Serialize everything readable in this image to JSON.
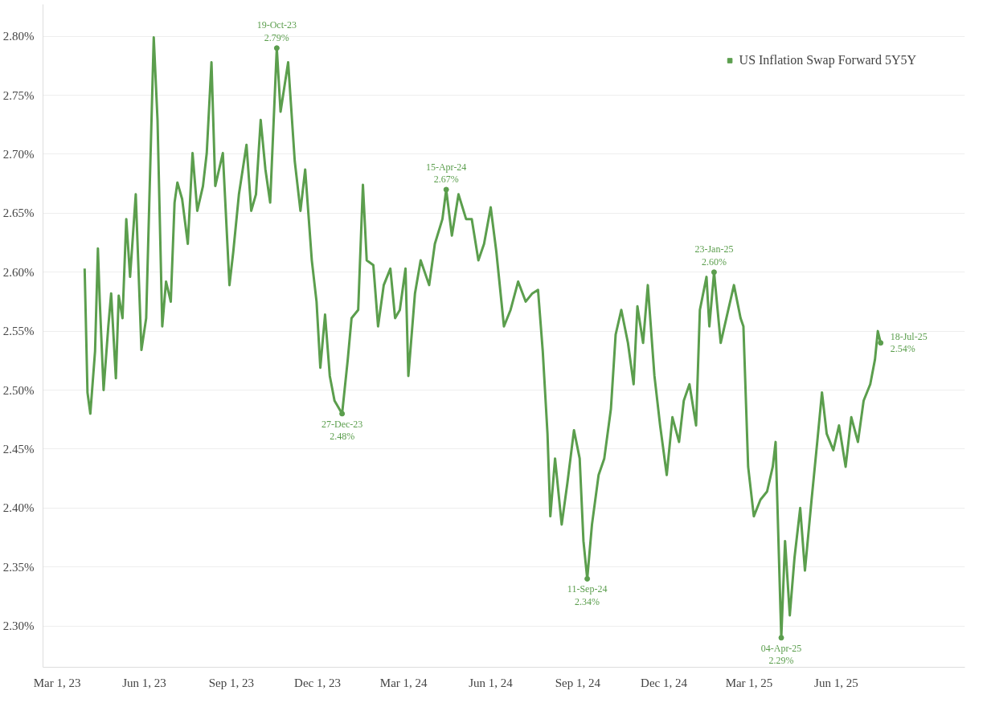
{
  "chart_data": {
    "type": "line",
    "xlim": [
      "2023-02-14",
      "2025-10-15"
    ],
    "ylim": [
      2.265,
      2.827
    ],
    "xticks": [
      {
        "value": "2023-03-01",
        "label": "Mar 1, 23"
      },
      {
        "value": "2023-06-01",
        "label": "Jun 1, 23"
      },
      {
        "value": "2023-09-01",
        "label": "Sep 1, 23"
      },
      {
        "value": "2023-12-01",
        "label": "Dec 1, 23"
      },
      {
        "value": "2024-03-01",
        "label": "Mar 1, 24"
      },
      {
        "value": "2024-06-01",
        "label": "Jun 1, 24"
      },
      {
        "value": "2024-09-01",
        "label": "Sep 1, 24"
      },
      {
        "value": "2024-12-01",
        "label": "Dec 1, 24"
      },
      {
        "value": "2025-03-01",
        "label": "Mar 1, 25"
      },
      {
        "value": "2025-06-01",
        "label": "Jun 1, 25"
      }
    ],
    "yticks": [
      {
        "value": 2.3,
        "label": "2.30%"
      },
      {
        "value": 2.35,
        "label": "2.35%"
      },
      {
        "value": 2.4,
        "label": "2.40%"
      },
      {
        "value": 2.45,
        "label": "2.45%"
      },
      {
        "value": 2.5,
        "label": "2.50%"
      },
      {
        "value": 2.55,
        "label": "2.55%"
      },
      {
        "value": 2.6,
        "label": "2.60%"
      },
      {
        "value": 2.65,
        "label": "2.65%"
      },
      {
        "value": 2.7,
        "label": "2.70%"
      },
      {
        "value": 2.75,
        "label": "2.75%"
      },
      {
        "value": 2.8,
        "label": "2.80%"
      }
    ],
    "grid": "y",
    "legend": "top right",
    "marker": "none",
    "line_style": "solid",
    "series": [
      {
        "name": "US Inflation Swap Forward 5Y5Y",
        "color": "#5b9e4d",
        "x": [
          "2023-03-30",
          "2023-04-02",
          "2023-04-05",
          "2023-04-10",
          "2023-04-13",
          "2023-04-15",
          "2023-04-19",
          "2023-04-24",
          "2023-04-27",
          "2023-05-02",
          "2023-05-05",
          "2023-05-09",
          "2023-05-13",
          "2023-05-17",
          "2023-05-23",
          "2023-05-29",
          "2023-06-03",
          "2023-06-11",
          "2023-06-15",
          "2023-06-20",
          "2023-06-24",
          "2023-06-29",
          "2023-07-03",
          "2023-07-06",
          "2023-07-11",
          "2023-07-17",
          "2023-07-22",
          "2023-07-27",
          "2023-08-02",
          "2023-08-06",
          "2023-08-11",
          "2023-08-15",
          "2023-08-23",
          "2023-08-30",
          "2023-09-03",
          "2023-09-09",
          "2023-09-17",
          "2023-09-22",
          "2023-09-27",
          "2023-10-02",
          "2023-10-07",
          "2023-10-12",
          "2023-10-19",
          "2023-10-23",
          "2023-10-31",
          "2023-11-07",
          "2023-11-13",
          "2023-11-18",
          "2023-11-25",
          "2023-11-30",
          "2023-12-04",
          "2023-12-09",
          "2023-12-14",
          "2023-12-19",
          "2023-12-27",
          "2024-01-02",
          "2024-01-06",
          "2024-01-13",
          "2024-01-18",
          "2024-01-22",
          "2024-01-29",
          "2024-02-03",
          "2024-02-09",
          "2024-02-16",
          "2024-02-21",
          "2024-02-26",
          "2024-03-03",
          "2024-03-06",
          "2024-03-13",
          "2024-03-19",
          "2024-03-28",
          "2024-04-03",
          "2024-04-11",
          "2024-04-15",
          "2024-04-21",
          "2024-04-28",
          "2024-05-06",
          "2024-05-12",
          "2024-05-19",
          "2024-05-25",
          "2024-06-01",
          "2024-06-07",
          "2024-06-15",
          "2024-06-22",
          "2024-06-30",
          "2024-07-08",
          "2024-07-15",
          "2024-07-21",
          "2024-07-26",
          "2024-07-31",
          "2024-08-03",
          "2024-08-08",
          "2024-08-15",
          "2024-08-21",
          "2024-08-28",
          "2024-09-03",
          "2024-09-07",
          "2024-09-11",
          "2024-09-16",
          "2024-09-23",
          "2024-09-29",
          "2024-10-06",
          "2024-10-11",
          "2024-10-17",
          "2024-10-24",
          "2024-10-30",
          "2024-11-03",
          "2024-11-09",
          "2024-11-14",
          "2024-11-21",
          "2024-11-27",
          "2024-12-04",
          "2024-12-10",
          "2024-12-17",
          "2024-12-22",
          "2024-12-28",
          "2025-01-04",
          "2025-01-08",
          "2025-01-15",
          "2025-01-18",
          "2025-01-23",
          "2025-01-30",
          "2025-02-07",
          "2025-02-13",
          "2025-02-20",
          "2025-02-23",
          "2025-02-28",
          "2025-03-06",
          "2025-03-13",
          "2025-03-20",
          "2025-03-26",
          "2025-03-29",
          "2025-04-04",
          "2025-04-08",
          "2025-04-13",
          "2025-04-18",
          "2025-04-24",
          "2025-04-29",
          "2025-05-06",
          "2025-05-12",
          "2025-05-17",
          "2025-05-22",
          "2025-05-29",
          "2025-06-04",
          "2025-06-11",
          "2025-06-17",
          "2025-06-24",
          "2025-06-30",
          "2025-07-07",
          "2025-07-12",
          "2025-07-15",
          "2025-07-18"
        ],
        "values": [
          2.603,
          2.498,
          2.48,
          2.533,
          2.62,
          2.575,
          2.5,
          2.554,
          2.582,
          2.51,
          2.58,
          2.561,
          2.645,
          2.596,
          2.666,
          2.534,
          2.561,
          2.799,
          2.729,
          2.554,
          2.592,
          2.575,
          2.659,
          2.676,
          2.662,
          2.624,
          2.701,
          2.652,
          2.673,
          2.701,
          2.778,
          2.673,
          2.701,
          2.589,
          2.617,
          2.666,
          2.708,
          2.652,
          2.666,
          2.729,
          2.687,
          2.659,
          2.79,
          2.736,
          2.778,
          2.694,
          2.652,
          2.687,
          2.61,
          2.575,
          2.519,
          2.564,
          2.512,
          2.491,
          2.48,
          2.526,
          2.561,
          2.568,
          2.674,
          2.61,
          2.606,
          2.554,
          2.589,
          2.603,
          2.561,
          2.568,
          2.603,
          2.512,
          2.582,
          2.61,
          2.589,
          2.624,
          2.645,
          2.67,
          2.631,
          2.666,
          2.645,
          2.645,
          2.61,
          2.624,
          2.655,
          2.617,
          2.554,
          2.568,
          2.592,
          2.575,
          2.582,
          2.585,
          2.533,
          2.463,
          2.393,
          2.442,
          2.386,
          2.421,
          2.466,
          2.442,
          2.372,
          2.34,
          2.386,
          2.428,
          2.442,
          2.484,
          2.547,
          2.568,
          2.54,
          2.505,
          2.571,
          2.54,
          2.589,
          2.512,
          2.47,
          2.428,
          2.477,
          2.456,
          2.491,
          2.505,
          2.47,
          2.568,
          2.596,
          2.554,
          2.6,
          2.54,
          2.568,
          2.589,
          2.561,
          2.554,
          2.435,
          2.393,
          2.407,
          2.414,
          2.435,
          2.456,
          2.29,
          2.372,
          2.309,
          2.358,
          2.4,
          2.347,
          2.407,
          2.456,
          2.498,
          2.463,
          2.449,
          2.47,
          2.435,
          2.477,
          2.456,
          2.491,
          2.505,
          2.526,
          2.55,
          2.54
        ]
      }
    ],
    "annotations": [
      {
        "text": "19-Oct-23\n2.79%",
        "x": "2023-10-19",
        "y": 2.79
      },
      {
        "text": "27-Dec-23\n2.48%",
        "x": "2023-12-27",
        "y": 2.48
      },
      {
        "text": "15-Apr-24\n2.67%",
        "x": "2024-04-15",
        "y": 2.67
      },
      {
        "text": "11-Sep-24\n2.34%",
        "x": "2024-09-11",
        "y": 2.34
      },
      {
        "text": "23-Jan-25\n2.60%",
        "x": "2025-01-23",
        "y": 2.6
      },
      {
        "text": "04-Apr-25\n2.29%",
        "x": "2025-04-04",
        "y": 2.29
      },
      {
        "text": "18-Jul-25\n2.54%",
        "x": "2025-07-18",
        "y": 2.54
      }
    ]
  }
}
